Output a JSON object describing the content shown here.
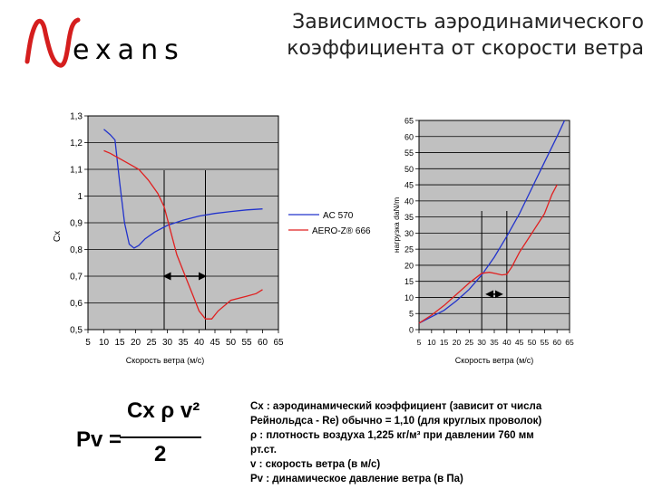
{
  "brand": {
    "logo_text": "exans"
  },
  "title_lines": [
    "Зависимость аэродинамического",
    "коэффициента от скорости ветра"
  ],
  "colors": {
    "plot_bg": "#c0c0c0",
    "series_ac570": "#2233cc",
    "series_aero": "#e02020"
  },
  "chart_data": [
    {
      "type": "line",
      "ylabel": "Cx",
      "xlabel": "Скорость ветра (м/с)",
      "xlim": [
        5,
        65
      ],
      "ylim": [
        0.5,
        1.3
      ],
      "x_ticks": [
        "5",
        "10",
        "15",
        "20",
        "25",
        "30",
        "35",
        "40",
        "45",
        "50",
        "55",
        "60",
        "65"
      ],
      "y_ticks": [
        "0,5",
        "0,6",
        "0,7",
        "0,8",
        "0,9",
        "1",
        "1,1",
        "1,2",
        "1,3"
      ],
      "grid": "horizontal",
      "legend": "right",
      "legend_entries": [
        "AC 570",
        "AERO-Z® 666"
      ],
      "series": [
        {
          "name": "AC 570",
          "color": "#2233cc",
          "x": [
            10,
            12,
            13.5,
            15,
            16.5,
            18,
            19.5,
            21,
            23,
            26,
            30,
            35,
            40,
            45,
            50,
            55,
            60
          ],
          "y": [
            1.25,
            1.23,
            1.21,
            1.05,
            0.9,
            0.82,
            0.805,
            0.815,
            0.84,
            0.865,
            0.89,
            0.91,
            0.925,
            0.935,
            0.942,
            0.948,
            0.952
          ]
        },
        {
          "name": "AERO-Z® 666",
          "color": "#e02020",
          "x": [
            10,
            12,
            15,
            18,
            21,
            24,
            27,
            29,
            31,
            33,
            36,
            38,
            40,
            42,
            44,
            46,
            50,
            55,
            58,
            60
          ],
          "y": [
            1.17,
            1.16,
            1.14,
            1.12,
            1.1,
            1.06,
            1.01,
            0.96,
            0.87,
            0.78,
            0.69,
            0.63,
            0.57,
            0.54,
            0.54,
            0.57,
            0.61,
            0.625,
            0.635,
            0.65
          ]
        }
      ],
      "markers": {
        "vlines_x": [
          29,
          42
        ],
        "arrow_x": [
          29,
          42
        ],
        "arrow_y": 0.7
      }
    },
    {
      "type": "line",
      "ylabel": "нагрузка daN/m",
      "xlabel": "Скорость ветра (м/с)",
      "xlim": [
        5,
        65
      ],
      "ylim": [
        0,
        65
      ],
      "x_ticks": [
        "5",
        "10",
        "15",
        "20",
        "25",
        "30",
        "35",
        "40",
        "45",
        "50",
        "55",
        "60",
        "65"
      ],
      "y_ticks": [
        "0",
        "5",
        "10",
        "15",
        "20",
        "25",
        "30",
        "35",
        "40",
        "45",
        "50",
        "55",
        "60",
        "65"
      ],
      "grid": "horizontal",
      "series": [
        {
          "color": "#2233cc",
          "x": [
            5,
            10,
            15,
            20,
            25,
            30,
            35,
            40,
            45,
            50,
            55,
            60,
            63
          ],
          "y": [
            2,
            4,
            6,
            9,
            12.5,
            17,
            22.5,
            29,
            36,
            44,
            52,
            60,
            65
          ]
        },
        {
          "color": "#e02020",
          "x": [
            5,
            10,
            15,
            20,
            25,
            30,
            33,
            35,
            38,
            40,
            42,
            45,
            50,
            55,
            58,
            60
          ],
          "y": [
            2,
            4.5,
            7.5,
            11,
            14.5,
            17.5,
            17.8,
            17.5,
            17,
            17.2,
            19.5,
            24,
            30,
            36,
            42,
            45
          ]
        }
      ],
      "markers": {
        "vlines_x": [
          30,
          40
        ],
        "arrow_x": [
          32,
          38
        ],
        "arrow_y": 11
      }
    }
  ],
  "formula": {
    "lhs": "Pv =",
    "numerator": "Cx ρ v²",
    "denominator": "2"
  },
  "notes": [
    "Cx : аэродинамический коэффициент (зависит от числа",
    "Рейнольдса - Re)  обычно = 1,10 (для круглых проволок)",
    "ρ   : плотность воздуха 1,225 кг/м³ при давлении 760 мм",
    "рт.ст.",
    "v   : скорость ветра (в м/с)",
    "Pv : динамическое давление ветра (в Па)"
  ]
}
